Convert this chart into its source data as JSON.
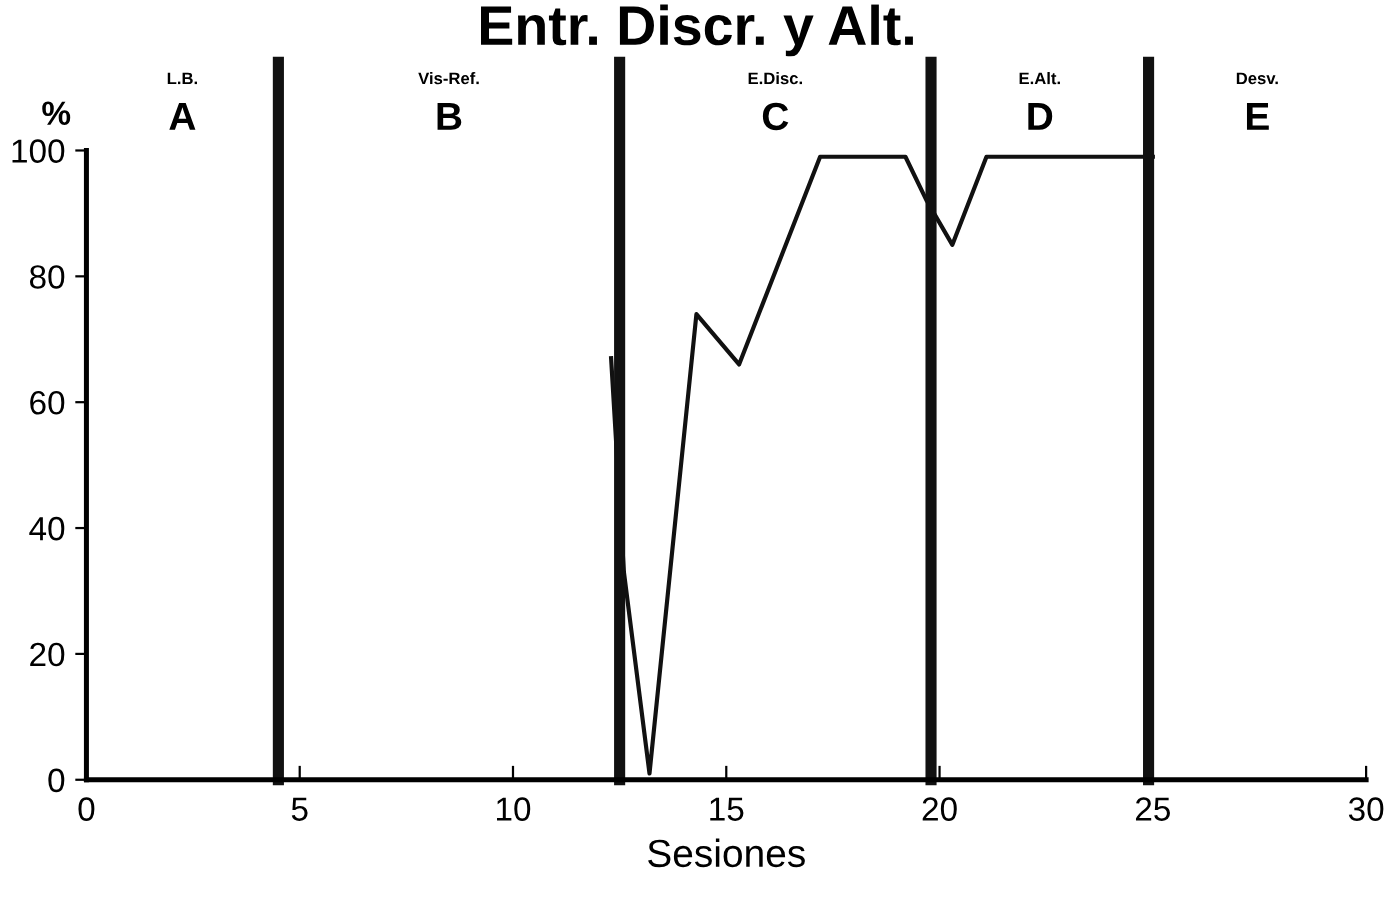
{
  "chart_data": {
    "type": "line",
    "title": "Entr. Discr. y Alt.",
    "xlabel": "Sesiones",
    "ylabel": "%",
    "xlim": [
      0,
      30
    ],
    "xticks": [
      0,
      5,
      10,
      15,
      20,
      25,
      30
    ],
    "ylim": [
      0,
      100
    ],
    "yticks": [
      0,
      20,
      40,
      60,
      80,
      100
    ],
    "grid": false,
    "legend": false,
    "marker": "none",
    "line_style": "solid",
    "series": [
      {
        "color": "#111111",
        "x": [
          12.3,
          12.6,
          13.2,
          14.3,
          15.3,
          17.2,
          19.2,
          19.7,
          20.3,
          21.1,
          25
        ],
        "values": [
          67,
          33,
          1,
          74,
          66,
          99,
          99,
          92,
          85,
          99,
          99
        ]
      }
    ],
    "ref_lines": [
      {
        "axis": "x",
        "value": 4.5,
        "color": "#111111"
      },
      {
        "axis": "x",
        "value": 12.5,
        "color": "#111111"
      },
      {
        "axis": "x",
        "value": 19.8,
        "color": "#111111"
      },
      {
        "axis": "x",
        "value": 24.9,
        "color": "#111111"
      }
    ],
    "annotations": [
      "L.B.",
      "Vis-Ref.",
      "E.Disc.",
      "E.Alt.",
      "Desv.",
      "A",
      "B",
      "C",
      "D",
      "E"
    ]
  }
}
